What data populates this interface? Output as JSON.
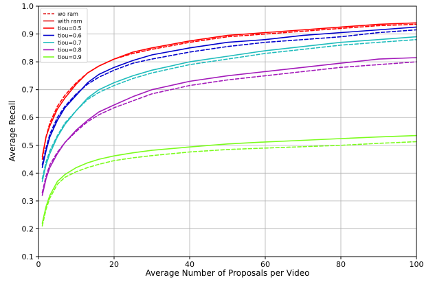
{
  "chart_data": {
    "type": "line",
    "title": "",
    "xlabel": "Average Number of Proposals per Video",
    "ylabel": "Average Recall",
    "xlim": [
      0,
      100
    ],
    "ylim": [
      0.1,
      1.0
    ],
    "xticks": [
      0,
      20,
      40,
      60,
      80,
      100
    ],
    "yticks": [
      0.1,
      0.2,
      0.3,
      0.4,
      0.5,
      0.6,
      0.7,
      0.8,
      0.9,
      1.0
    ],
    "grid": true,
    "legend_position": "top-left",
    "legend": [
      {
        "label": "wo ram",
        "color": "#e31a1c",
        "style": "dashed"
      },
      {
        "label": "with ram",
        "color": "#e31a1c",
        "style": "solid"
      },
      {
        "label": "tiou=0.5",
        "color": "#ff0000"
      },
      {
        "label": "tiou=0.6",
        "color": "#0000cc"
      },
      {
        "label": "tiou=0.7",
        "color": "#1fbcbc"
      },
      {
        "label": "tiou=0.8",
        "color": "#a31aba"
      },
      {
        "label": "tiou=0.9",
        "color": "#7cfc1e"
      }
    ],
    "x": [
      1,
      2,
      3,
      5,
      7,
      10,
      13,
      16,
      20,
      25,
      30,
      40,
      50,
      60,
      70,
      80,
      90,
      100
    ],
    "series": [
      {
        "name": "tiou=0.5",
        "variant": "with ram",
        "color": "#ff0000",
        "style": "solid",
        "values": [
          0.46,
          0.53,
          0.57,
          0.63,
          0.67,
          0.72,
          0.76,
          0.785,
          0.81,
          0.835,
          0.85,
          0.875,
          0.895,
          0.905,
          0.915,
          0.925,
          0.935,
          0.94
        ]
      },
      {
        "name": "tiou=0.5",
        "variant": "wo ram",
        "color": "#ff0000",
        "style": "dashed",
        "values": [
          0.45,
          0.53,
          0.58,
          0.64,
          0.68,
          0.725,
          0.76,
          0.785,
          0.81,
          0.83,
          0.845,
          0.87,
          0.89,
          0.9,
          0.91,
          0.92,
          0.93,
          0.935
        ]
      },
      {
        "name": "tiou=0.6",
        "variant": "with ram",
        "color": "#0000cc",
        "style": "solid",
        "values": [
          0.42,
          0.48,
          0.53,
          0.59,
          0.635,
          0.68,
          0.725,
          0.755,
          0.78,
          0.805,
          0.825,
          0.85,
          0.87,
          0.88,
          0.895,
          0.905,
          0.915,
          0.925
        ]
      },
      {
        "name": "tiou=0.6",
        "variant": "wo ram",
        "color": "#0000cc",
        "style": "dashed",
        "values": [
          0.43,
          0.49,
          0.54,
          0.6,
          0.64,
          0.685,
          0.72,
          0.745,
          0.77,
          0.795,
          0.81,
          0.835,
          0.855,
          0.87,
          0.88,
          0.89,
          0.905,
          0.915
        ]
      },
      {
        "name": "tiou=0.7",
        "variant": "with ram",
        "color": "#1fbcbc",
        "style": "solid",
        "values": [
          0.37,
          0.43,
          0.47,
          0.53,
          0.575,
          0.625,
          0.67,
          0.7,
          0.725,
          0.75,
          0.77,
          0.8,
          0.82,
          0.84,
          0.855,
          0.87,
          0.88,
          0.89
        ]
      },
      {
        "name": "tiou=0.7",
        "variant": "wo ram",
        "color": "#1fbcbc",
        "style": "dashed",
        "values": [
          0.38,
          0.44,
          0.48,
          0.535,
          0.58,
          0.625,
          0.665,
          0.69,
          0.715,
          0.74,
          0.76,
          0.79,
          0.81,
          0.83,
          0.845,
          0.86,
          0.87,
          0.88
        ]
      },
      {
        "name": "tiou=0.8",
        "variant": "with ram",
        "color": "#a31aba",
        "style": "solid",
        "values": [
          0.32,
          0.38,
          0.42,
          0.47,
          0.51,
          0.555,
          0.59,
          0.62,
          0.645,
          0.675,
          0.7,
          0.73,
          0.75,
          0.765,
          0.78,
          0.795,
          0.81,
          0.815
        ]
      },
      {
        "name": "tiou=0.8",
        "variant": "wo ram",
        "color": "#a31aba",
        "style": "dashed",
        "values": [
          0.33,
          0.39,
          0.43,
          0.475,
          0.51,
          0.55,
          0.585,
          0.61,
          0.635,
          0.66,
          0.685,
          0.715,
          0.735,
          0.75,
          0.765,
          0.78,
          0.79,
          0.8
        ]
      },
      {
        "name": "tiou=0.9",
        "variant": "with ram",
        "color": "#7cfc1e",
        "style": "solid",
        "values": [
          0.22,
          0.28,
          0.32,
          0.37,
          0.395,
          0.42,
          0.437,
          0.45,
          0.462,
          0.473,
          0.482,
          0.494,
          0.505,
          0.512,
          0.518,
          0.524,
          0.53,
          0.535
        ]
      },
      {
        "name": "tiou=0.9",
        "variant": "wo ram",
        "color": "#7cfc1e",
        "style": "dashed",
        "values": [
          0.21,
          0.27,
          0.31,
          0.36,
          0.385,
          0.405,
          0.42,
          0.432,
          0.445,
          0.455,
          0.463,
          0.476,
          0.485,
          0.49,
          0.495,
          0.5,
          0.507,
          0.513
        ]
      }
    ]
  }
}
